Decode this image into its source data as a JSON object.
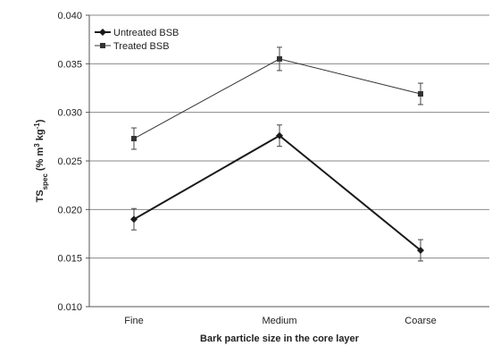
{
  "chart_data": {
    "type": "line",
    "xlabel": "Bark particle size in the core layer",
    "ylabel": {
      "main": "TS",
      "sub": "spec",
      "unit_open": " (% m",
      "sup1": "3",
      "unit_mid": " kg",
      "sup2": "-1",
      "unit_close": ")"
    },
    "categories": [
      "Fine",
      "Medium",
      "Coarse"
    ],
    "ylim": [
      0.01,
      0.04
    ],
    "yticks": [
      "0.010",
      "0.015",
      "0.020",
      "0.025",
      "0.030",
      "0.035",
      "0.040"
    ],
    "grid": true,
    "legend_position": "top-left",
    "series": [
      {
        "name": "Untreated BSB",
        "marker": "diamond",
        "line_width": "thick",
        "color": "#1a1a1a",
        "values": [
          0.019,
          0.0276,
          0.0158
        ],
        "errors": [
          0.0011,
          0.0011,
          0.0011
        ]
      },
      {
        "name": "Treated BSB",
        "marker": "square",
        "line_width": "thin",
        "color": "#333333",
        "values": [
          0.0273,
          0.0355,
          0.0319
        ],
        "errors": [
          0.0011,
          0.0012,
          0.0011
        ]
      }
    ]
  }
}
